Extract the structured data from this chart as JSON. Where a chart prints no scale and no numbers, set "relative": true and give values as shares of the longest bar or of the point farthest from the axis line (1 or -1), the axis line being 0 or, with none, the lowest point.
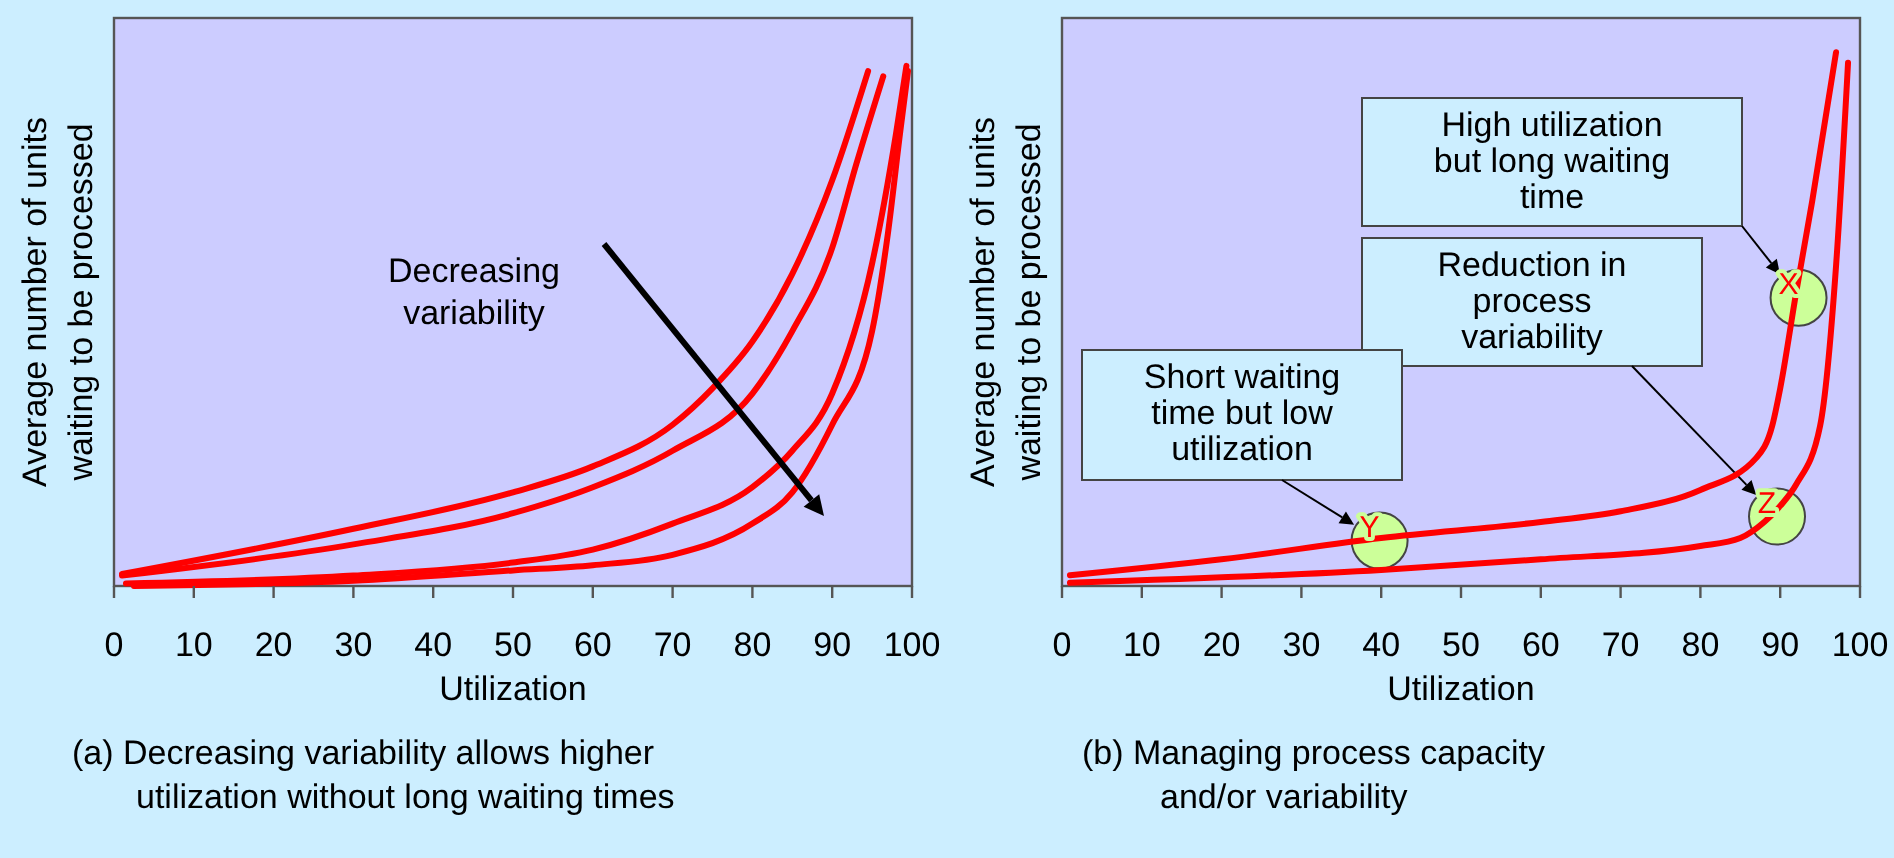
{
  "chart_data": [
    {
      "type": "line",
      "relative": true,
      "xlabel": "Utilization",
      "ylabel": "Average number of units\nwaiting to be processed",
      "xlim": [
        0,
        100
      ],
      "xticks": [
        0,
        10,
        20,
        30,
        40,
        50,
        60,
        70,
        80,
        90,
        100
      ],
      "line_style": "solid",
      "marker": "none",
      "series": [
        {
          "color": "#ff0000",
          "x": [
            1,
            30,
            50,
            60,
            70,
            75,
            80,
            85,
            90,
            94.5
          ],
          "values": [
            0.023,
            0.11,
            0.18,
            0.23,
            0.31,
            0.38,
            0.47,
            0.6,
            0.78,
            0.99
          ]
        },
        {
          "color": "#ff0000",
          "x": [
            1,
            30,
            50,
            60,
            70,
            80,
            85,
            90,
            93,
            96.4
          ],
          "values": [
            0.02,
            0.08,
            0.14,
            0.19,
            0.26,
            0.37,
            0.49,
            0.65,
            0.81,
            0.98
          ]
        },
        {
          "color": "#ff0000",
          "x": [
            1.5,
            30,
            50,
            60,
            70,
            80,
            85,
            90,
            95,
            98,
            99.3
          ],
          "values": [
            0.005,
            0.02,
            0.045,
            0.07,
            0.12,
            0.19,
            0.26,
            0.37,
            0.62,
            0.87,
            1
          ]
        },
        {
          "color": "#ff0000",
          "x": [
            2.5,
            30,
            50,
            60,
            70,
            80,
            85,
            90,
            95,
            97,
            98.5,
            99.5
          ],
          "values": [
            0,
            0.01,
            0.03,
            0.04,
            0.06,
            0.12,
            0.18,
            0.31,
            0.49,
            0.68,
            0.87,
            0.99
          ]
        }
      ],
      "annotations": [
        "Decreasing\nvariability",
        "(a) Decreasing variability allows higher\nutilization without long waiting times"
      ]
    },
    {
      "type": "line",
      "relative": true,
      "xlabel": "Utilization",
      "ylabel": "Average number of units\nwaiting to be processed",
      "xlim": [
        0,
        100
      ],
      "xticks": [
        0,
        10,
        20,
        30,
        40,
        50,
        60,
        70,
        80,
        90,
        100
      ],
      "line_style": "solid",
      "marker": "none",
      "series": [
        {
          "color": "#ff0000",
          "x": [
            1,
            20,
            40,
            60,
            70,
            80,
            87,
            89,
            90,
            92,
            94,
            97
          ],
          "values": [
            0.02,
            0.05,
            0.09,
            0.12,
            0.14,
            0.18,
            0.24,
            0.3,
            0.37,
            0.55,
            0.72,
            1
          ]
        },
        {
          "color": "#ff0000",
          "x": [
            1,
            40,
            60,
            80,
            85,
            88,
            90,
            92,
            95,
            97,
            98.5
          ],
          "values": [
            0.006,
            0.03,
            0.05,
            0.075,
            0.09,
            0.12,
            0.15,
            0.19,
            0.3,
            0.6,
            0.98
          ]
        }
      ],
      "annotations": [
        "High utilization\nbut long waiting\ntime",
        "Reduction in\nprocess\nvariability",
        "Short waiting\ntime but low\nutilization",
        {
          "text": "X",
          "x": 92.3,
          "y": 0.54
        },
        {
          "text": "Z",
          "x": 89.6,
          "y": 0.13
        },
        {
          "text": "Y",
          "x": 39.8,
          "y": 0.085
        },
        "(b) Managing process capacity\nand/or variability"
      ]
    }
  ]
}
